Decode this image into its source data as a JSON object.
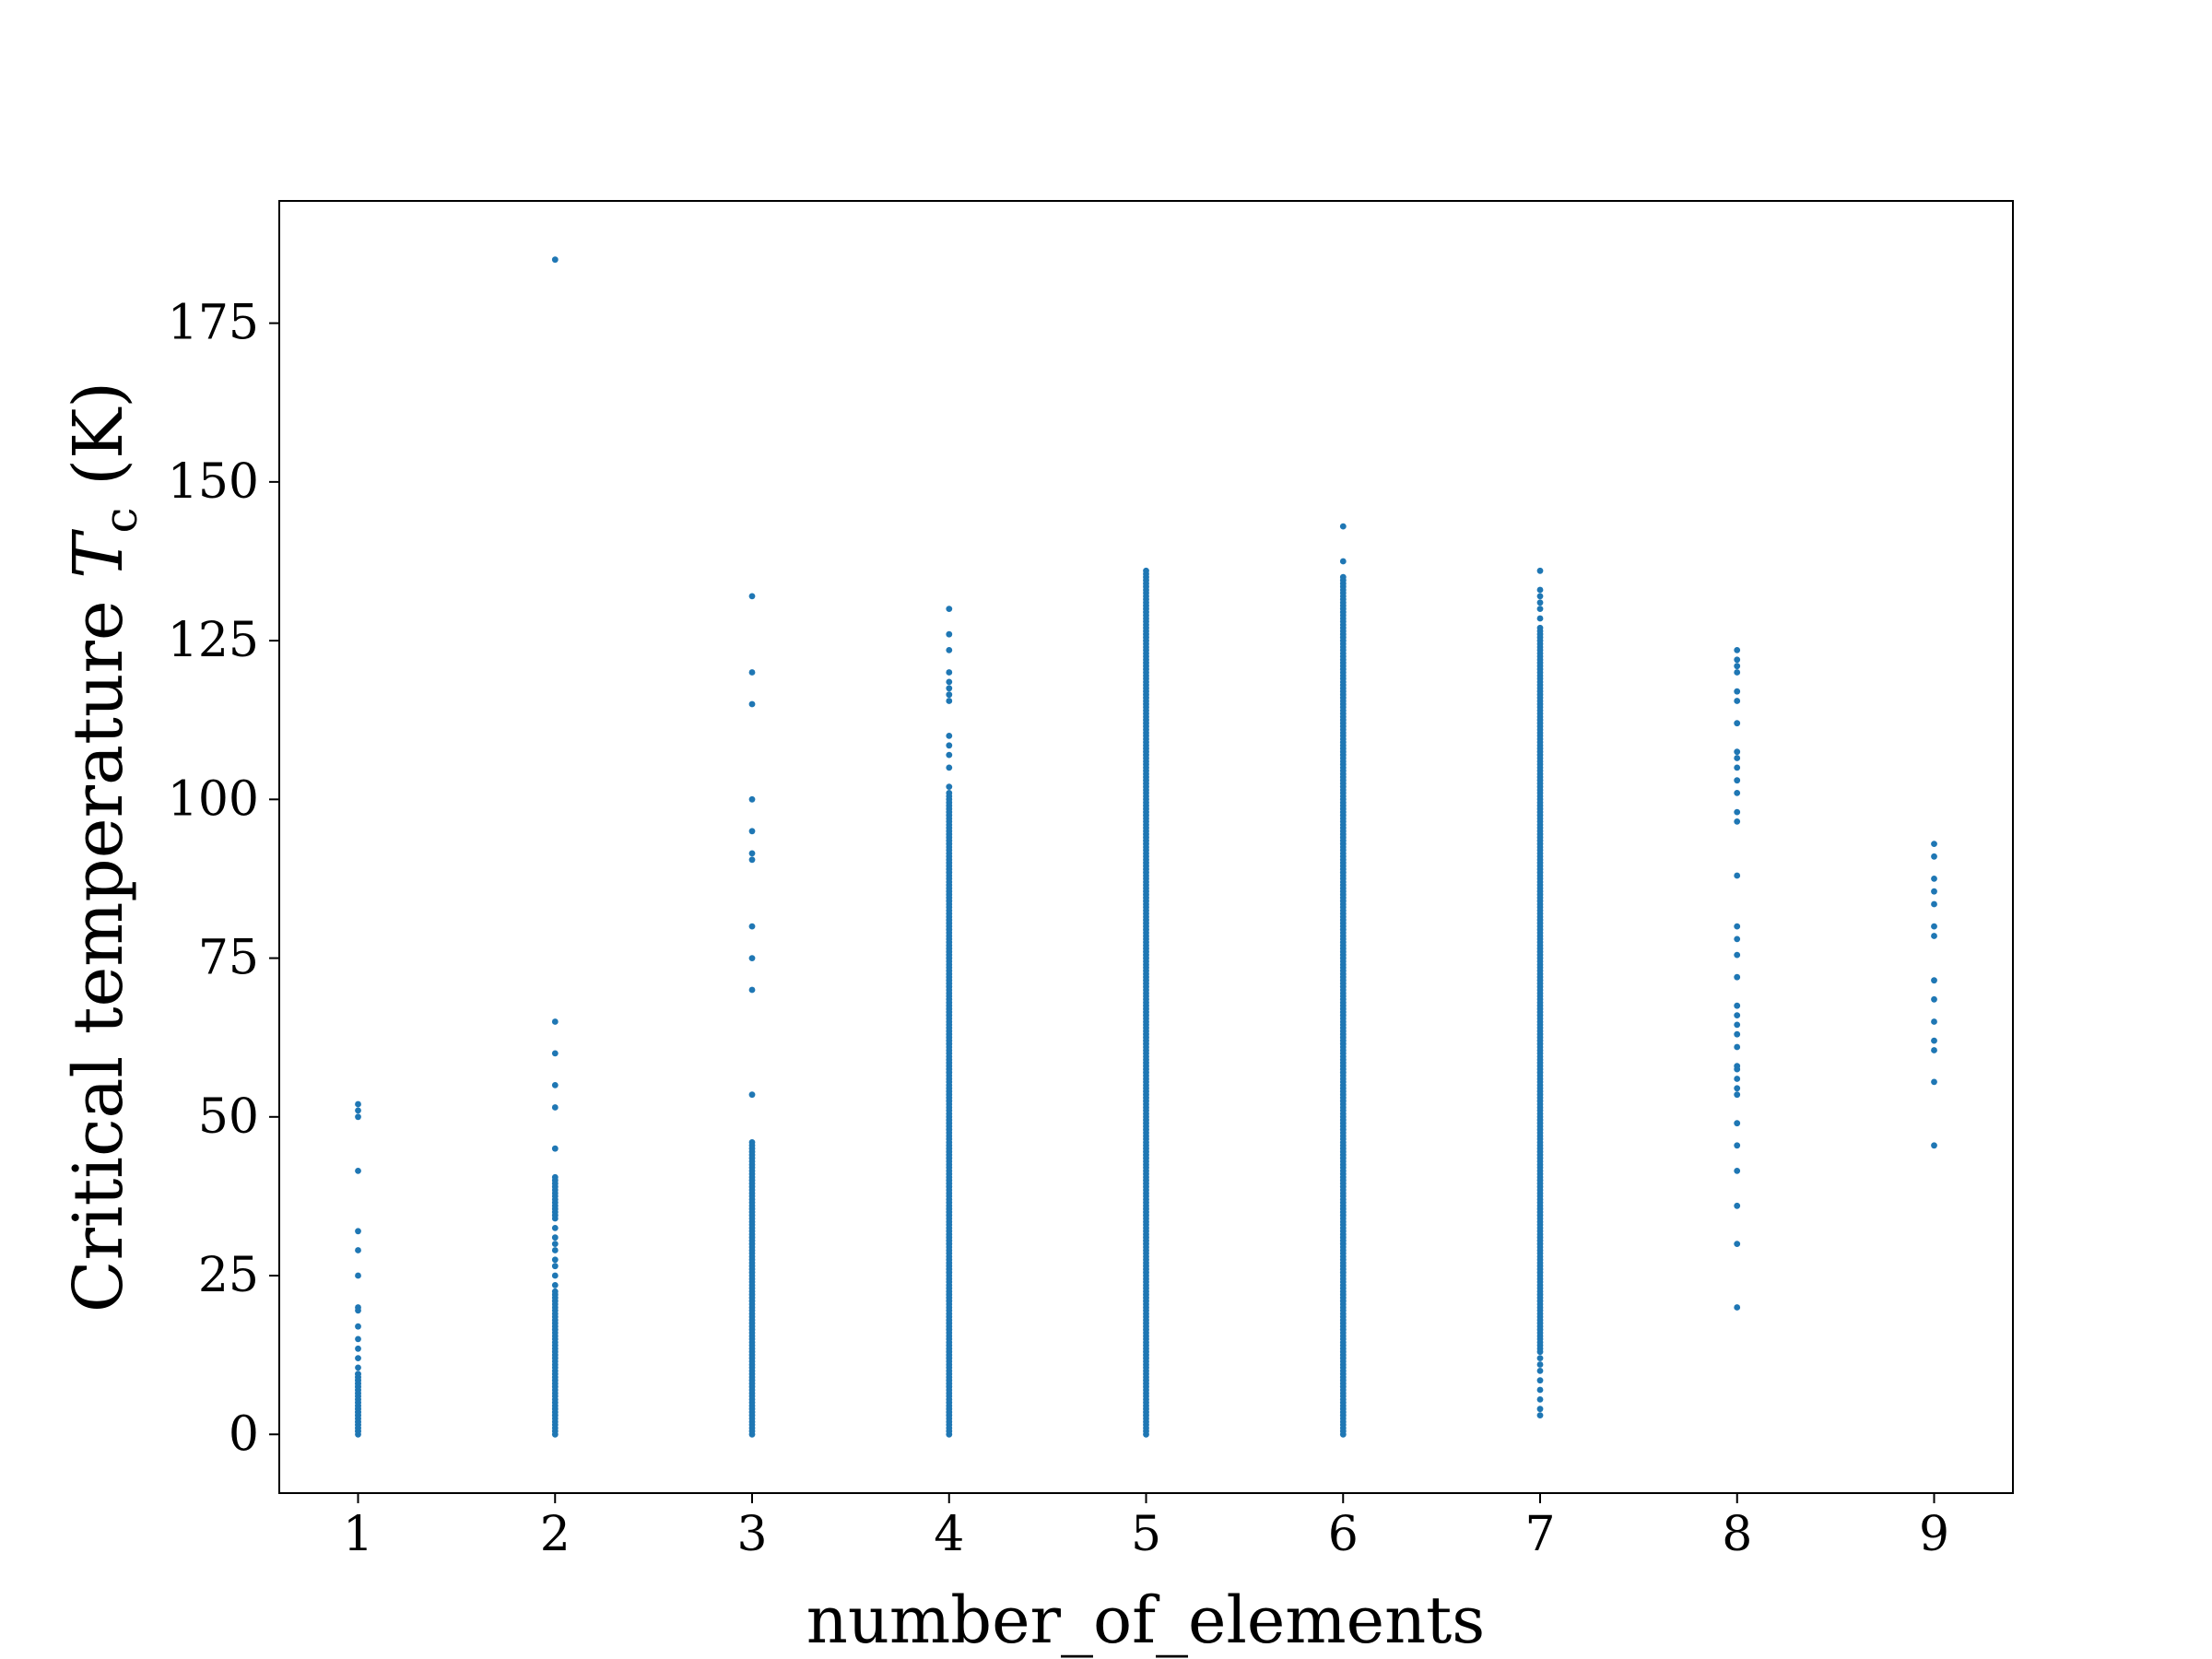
{
  "chart_data": {
    "type": "scatter",
    "title": "",
    "xlabel": "number_of_elements",
    "ylabel": {
      "main": "Critical temperature ",
      "symbol": "T",
      "subscript": "c",
      "unit": " (K)"
    },
    "xlim": [
      0.6,
      9.4
    ],
    "ylim": [
      -9.25,
      194.25
    ],
    "xticks": [
      1,
      2,
      3,
      4,
      5,
      6,
      7,
      8,
      9
    ],
    "xtick_labels": [
      "1",
      "2",
      "3",
      "4",
      "5",
      "6",
      "7",
      "8",
      "9"
    ],
    "yticks": [
      0,
      25,
      50,
      75,
      100,
      125,
      150,
      175
    ],
    "ytick_labels": [
      "0",
      "25",
      "50",
      "75",
      "100",
      "125",
      "150",
      "175"
    ],
    "grid": false,
    "marker_color": "#1f77b4",
    "series": [
      {
        "x": 1,
        "dense_ranges": [
          [
            0,
            9.5
          ]
        ],
        "points": [
          0.5,
          1,
          1.5,
          2,
          2.5,
          3,
          3.5,
          4,
          4.5,
          5,
          5.5,
          6,
          6.5,
          7,
          7.5,
          8,
          8.5,
          9,
          9.5,
          10.5,
          12,
          13.5,
          15,
          17,
          19.5,
          20,
          25,
          29,
          32,
          41.5,
          50,
          51,
          52
        ]
      },
      {
        "x": 2,
        "dense_ranges": [
          [
            0,
            22.5
          ],
          [
            34,
            40.5
          ]
        ],
        "points": [
          23.5,
          25,
          26.5,
          27.5,
          29,
          30,
          31,
          32.5,
          45,
          51.5,
          55,
          60,
          65,
          185
        ]
      },
      {
        "x": 3,
        "dense_ranges": [
          [
            0,
            46
          ]
        ],
        "points": [
          53.5,
          70,
          75,
          80,
          90.5,
          91.5,
          95,
          100,
          115,
          120,
          132
        ]
      },
      {
        "x": 4,
        "dense_ranges": [
          [
            0,
            101
          ]
        ],
        "points": [
          102,
          105,
          107,
          108.5,
          110,
          115.5,
          116.5,
          117.5,
          118.5,
          120,
          123.5,
          126,
          130
        ]
      },
      {
        "x": 5,
        "dense_ranges": [
          [
            0,
            136
          ]
        ],
        "points": []
      },
      {
        "x": 6,
        "dense_ranges": [
          [
            0,
            135
          ]
        ],
        "points": [
          137.5,
          143
        ]
      },
      {
        "x": 7,
        "dense_ranges": [
          [
            13,
            127
          ]
        ],
        "points": [
          3,
          4,
          5.5,
          7,
          8.5,
          10,
          11,
          12,
          128.5,
          130,
          131,
          132,
          133,
          136
        ]
      },
      {
        "x": 8,
        "dense_ranges": [],
        "points": [
          20,
          30,
          36,
          41.5,
          45.5,
          49,
          53.5,
          54.5,
          56,
          57.5,
          58,
          61,
          63,
          64.5,
          66,
          67.5,
          72,
          75.5,
          78,
          80,
          88,
          96.5,
          98,
          101,
          103,
          105,
          106.5,
          107.5,
          112,
          115.5,
          117,
          120,
          121,
          122,
          123.5
        ]
      },
      {
        "x": 9,
        "dense_ranges": [],
        "points": [
          45.5,
          55.5,
          60.5,
          62,
          65,
          68.5,
          71.5,
          78.5,
          80,
          83.5,
          85.5,
          87.5,
          91,
          93
        ]
      }
    ]
  }
}
